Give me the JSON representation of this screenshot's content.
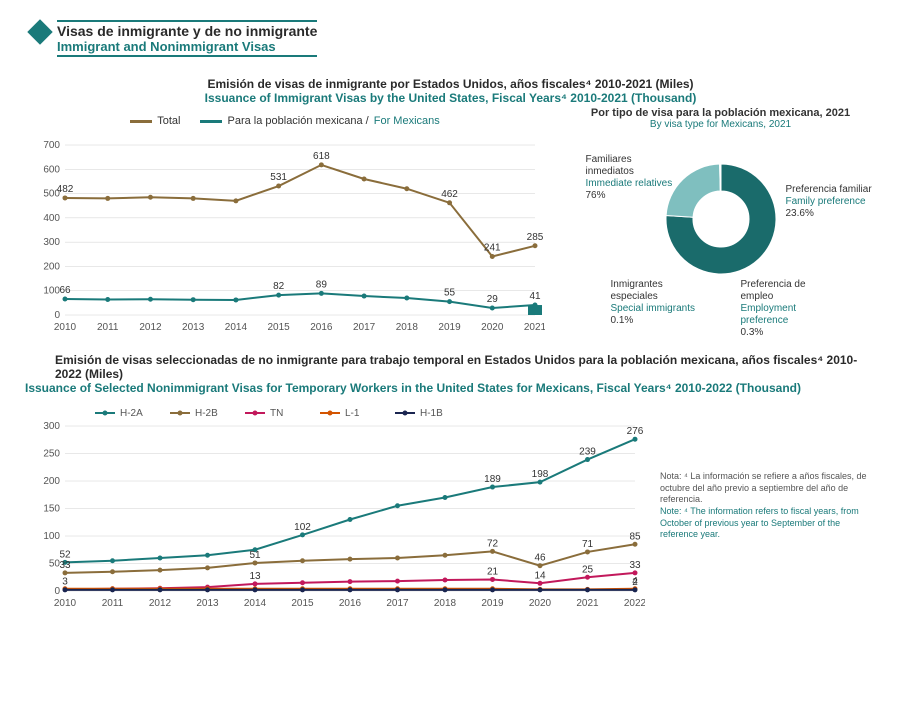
{
  "header": {
    "es": "Visas de inmigrante y de no inmigrante",
    "en": "Immigrant and Nonimmigrant Visas"
  },
  "chart1": {
    "title_es": "Emisión de visas de inmigrante por Estados Unidos, años fiscales⁴ 2010-2021 (Miles)",
    "title_en": "Issuance of Immigrant Visas by the United States, Fiscal Years⁴ 2010-2021 (Thousand)",
    "legend": {
      "total": "Total",
      "mex_es": "Para la población mexicana /",
      "mex_en": "For Mexicans"
    },
    "years": [
      "2010",
      "2011",
      "2012",
      "2013",
      "2014",
      "2015",
      "2016",
      "2017",
      "2018",
      "2019",
      "2020",
      "2021"
    ],
    "total_values": [
      482,
      480,
      485,
      480,
      470,
      531,
      618,
      560,
      520,
      462,
      241,
      285
    ],
    "total_labels": {
      "2010": 482,
      "2015": 531,
      "2016": 618,
      "2019": 462,
      "2020": 241,
      "2021": 285
    },
    "mex_values": [
      66,
      64,
      65,
      63,
      62,
      82,
      89,
      78,
      70,
      55,
      29,
      41
    ],
    "mex_labels": {
      "2010": 66,
      "2015": 82,
      "2016": 89,
      "2019": 55,
      "2020": 29,
      "2021": 41
    },
    "ylim": [
      0,
      700
    ],
    "ytick_step": 100,
    "colors": {
      "total": "#8a6d3b",
      "mex": "#1a7a7a",
      "grid": "#d0d0d0",
      "axis": "#888"
    }
  },
  "donut": {
    "title_es": "Por tipo de visa para la población mexicana, 2021",
    "title_en": "By visa type for Mexicans, 2021",
    "slices": [
      {
        "label_es": "Familiares inmediatos",
        "label_en": "Immediate relatives",
        "pct": 76.0,
        "color": "#1a6b6b"
      },
      {
        "label_es": "Preferencia familiar",
        "label_en": "Family preference",
        "pct": 23.6,
        "color": "#7fbfbf"
      },
      {
        "label_es": "Preferencia de empleo",
        "label_en": "Employment preference",
        "pct": 0.3,
        "color": "#555"
      },
      {
        "label_es": "Inmigrantes especiales",
        "label_en": "Special immigrants",
        "pct": 0.1,
        "color": "#ccc"
      }
    ]
  },
  "chart2": {
    "title_es": "Emisión de visas seleccionadas de no inmigrante para trabajo temporal en Estados Unidos para la población mexicana, años fiscales⁴ 2010-2022 (Miles)",
    "title_en": "Issuance of Selected Nonimmigrant Visas for Temporary Workers in the United States for Mexicans, Fiscal Years⁴ 2010-2022 (Thousand)",
    "years": [
      "2010",
      "2011",
      "2012",
      "2013",
      "2014",
      "2015",
      "2016",
      "2017",
      "2018",
      "2019",
      "2020",
      "2021",
      "2022"
    ],
    "series": [
      {
        "name": "H-2A",
        "color": "#1a7a7a",
        "values": [
          52,
          55,
          60,
          65,
          75,
          102,
          130,
          155,
          170,
          189,
          198,
          239,
          276
        ],
        "labels": {
          "2010": 52,
          "2015": 102,
          "2019": 189,
          "2020": 198,
          "2021": 239,
          "2022": 276
        }
      },
      {
        "name": "H-2B",
        "color": "#8a6d3b",
        "values": [
          33,
          35,
          38,
          42,
          51,
          55,
          58,
          60,
          65,
          72,
          46,
          71,
          85
        ],
        "labels": {
          "2010": 33,
          "2014": 51,
          "2019": 72,
          "2020": 46,
          "2021": 71,
          "2022": 85
        }
      },
      {
        "name": "TN",
        "color": "#c2185b",
        "values": [
          3,
          4,
          5,
          7,
          13,
          15,
          17,
          18,
          20,
          21,
          14,
          25,
          33
        ],
        "labels": {
          "2010": 3,
          "2014": 13,
          "2019": 21,
          "2020": 14,
          "2021": 25,
          "2022": 33
        }
      },
      {
        "name": "L-1",
        "color": "#d35400",
        "values": [
          4,
          4,
          4,
          4,
          4,
          4,
          4,
          4,
          4,
          4,
          3,
          3,
          4
        ],
        "labels": {
          "2022": 4
        }
      },
      {
        "name": "H-1B",
        "color": "#1a2550",
        "values": [
          2,
          2,
          2,
          2,
          2,
          2,
          2,
          2,
          2,
          2,
          2,
          2,
          2
        ],
        "labels": {
          "2022": 2
        }
      }
    ],
    "ylim": [
      0,
      300
    ],
    "ytick_step": 50,
    "colors": {
      "grid": "#d0d0d0",
      "axis": "#888"
    }
  },
  "note": {
    "es": "Nota: ⁴ La información se refiere a años fiscales, de octubre del año previo a septiembre del año de referencia.",
    "en": "Note: ⁴ The information refers to fiscal years, from October of previous year to September of the reference year."
  }
}
